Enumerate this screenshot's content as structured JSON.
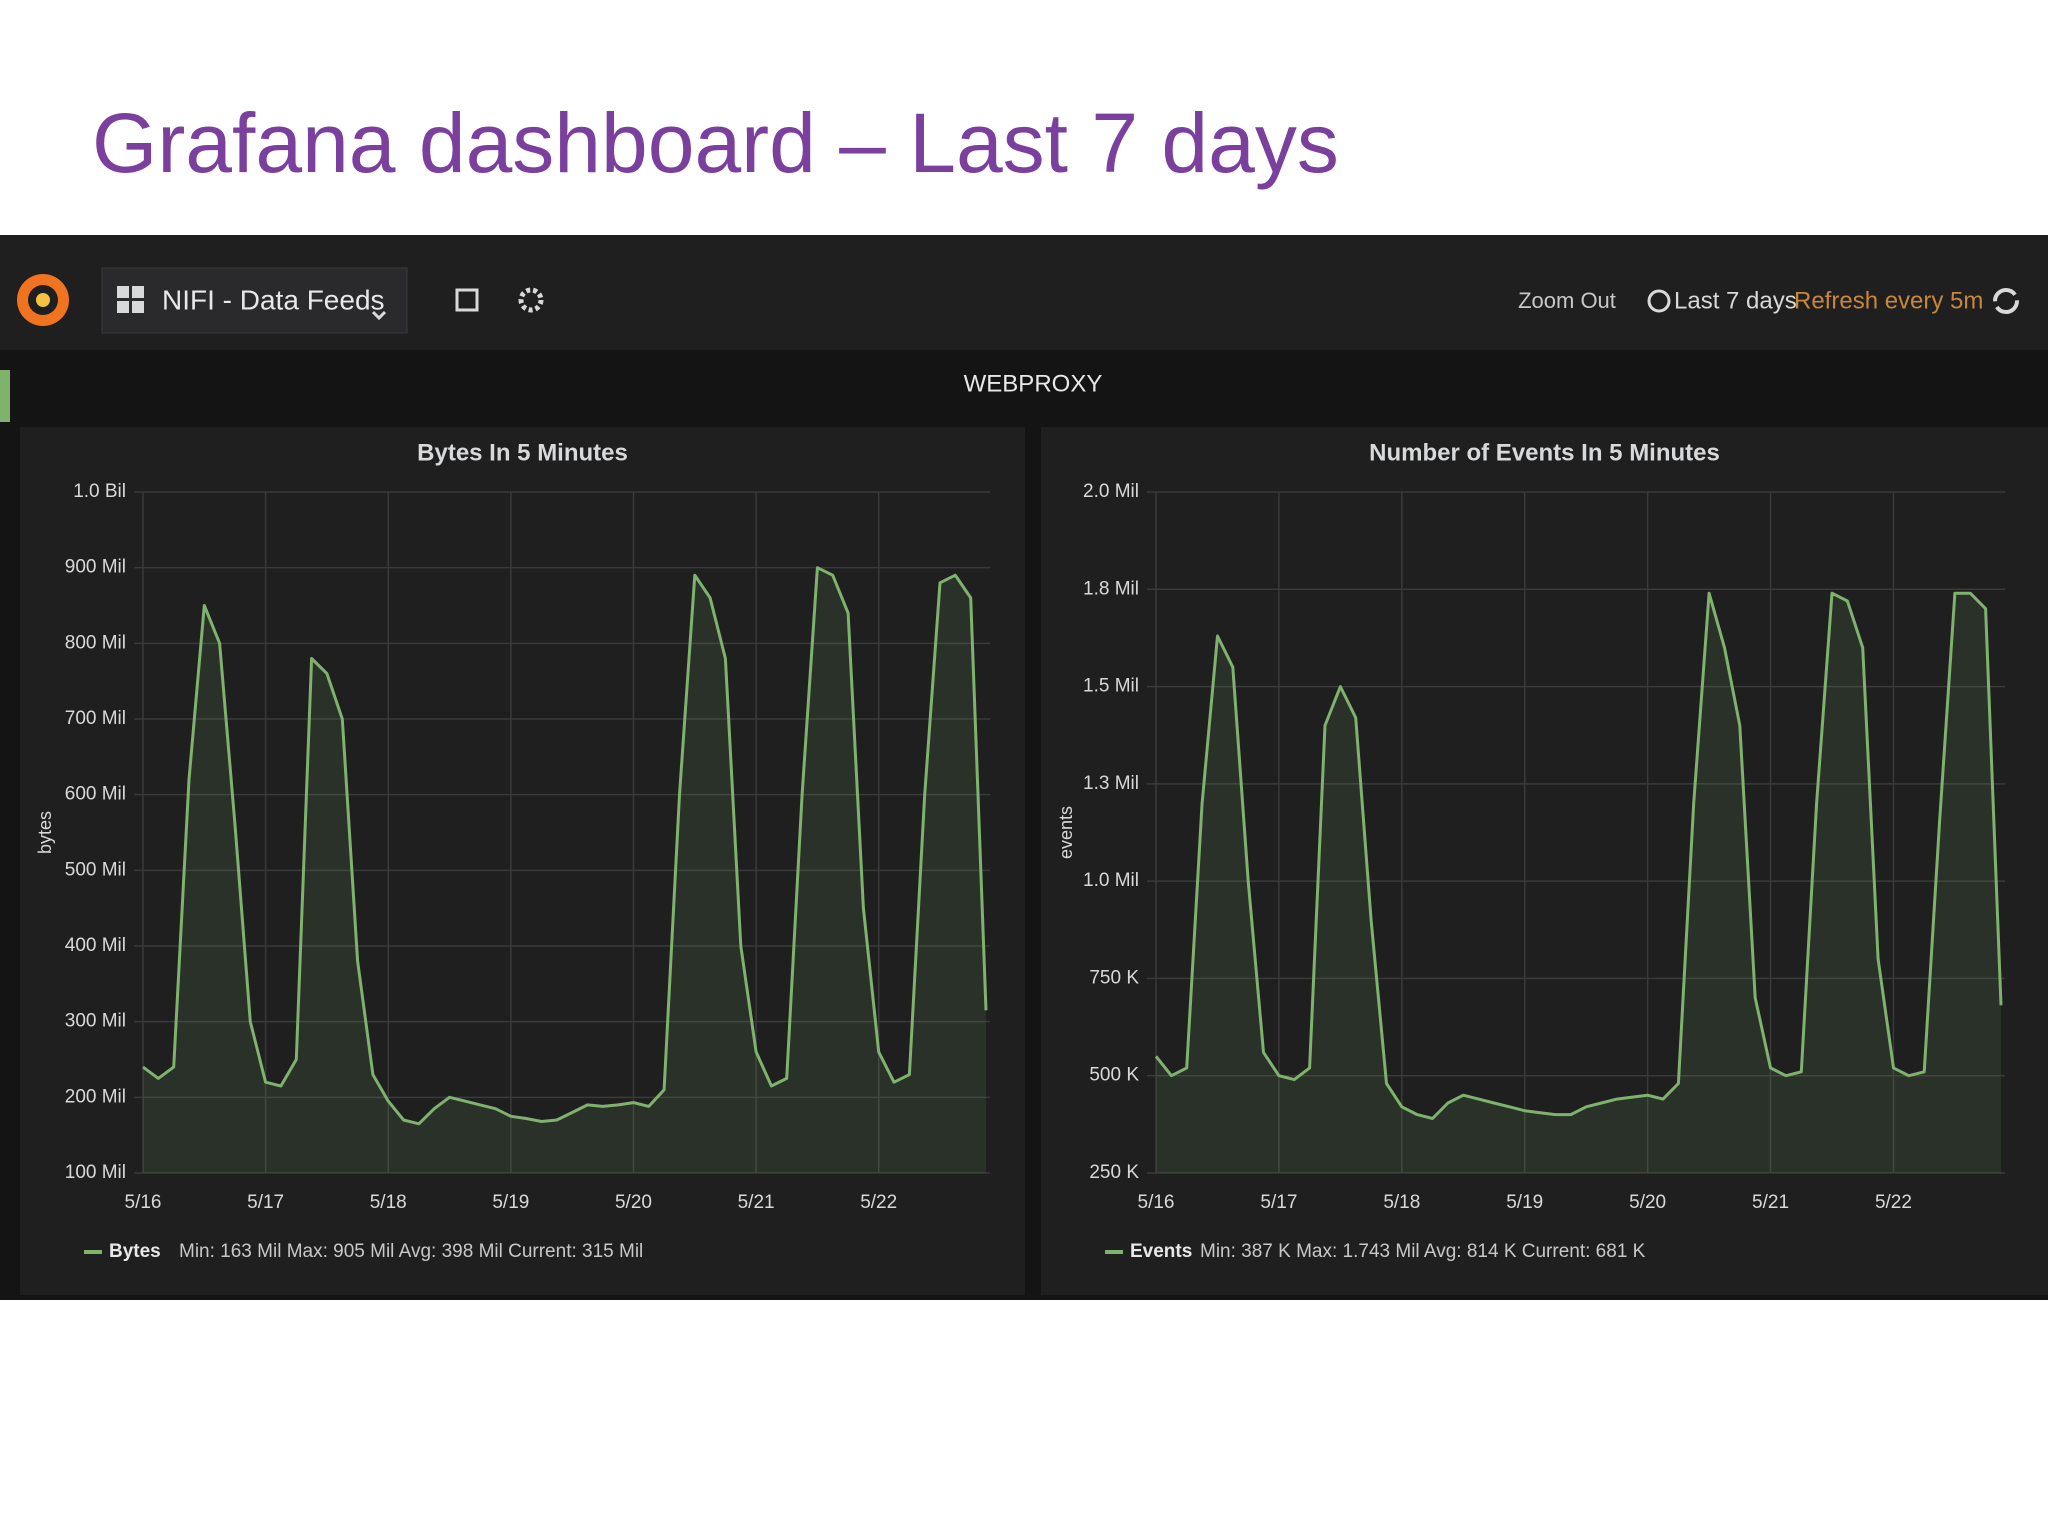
{
  "slide": {
    "title": "Grafana dashboard – Last 7 days"
  },
  "toolbar": {
    "dashboard": "NIFI - Data Feeds",
    "zoom": "Zoom Out",
    "range": "Last 7 days",
    "refresh": "Refresh every 5m"
  },
  "row_title": "WEBPROXY",
  "chart_data": [
    {
      "type": "line",
      "title": "Bytes In 5 Minutes",
      "ylabel": "bytes",
      "grid": true,
      "categories": [
        "5/16",
        null,
        null,
        null,
        null,
        null,
        null,
        null,
        "5/17",
        null,
        null,
        null,
        null,
        null,
        null,
        null,
        "5/18",
        null,
        null,
        null,
        null,
        null,
        null,
        null,
        "5/19",
        null,
        null,
        null,
        null,
        null,
        null,
        null,
        "5/20",
        null,
        null,
        null,
        null,
        null,
        null,
        null,
        "5/21",
        null,
        null,
        null,
        null,
        null,
        null,
        null,
        "5/22",
        null,
        null,
        null,
        null,
        null,
        null,
        null
      ],
      "series": [
        {
          "name": "Bytes",
          "color": "#7eb26d",
          "values": [
            240000000,
            225000000,
            240000000,
            620000000,
            850000000,
            800000000,
            560000000,
            300000000,
            220000000,
            215000000,
            250000000,
            780000000,
            760000000,
            700000000,
            380000000,
            230000000,
            195000000,
            170000000,
            165000000,
            185000000,
            200000000,
            195000000,
            190000000,
            185000000,
            175000000,
            172000000,
            168000000,
            170000000,
            180000000,
            190000000,
            188000000,
            190000000,
            193000000,
            188000000,
            210000000,
            600000000,
            890000000,
            860000000,
            780000000,
            400000000,
            260000000,
            215000000,
            225000000,
            600000000,
            900000000,
            890000000,
            840000000,
            450000000,
            260000000,
            220000000,
            230000000,
            600000000,
            880000000,
            890000000,
            860000000,
            315000000
          ]
        }
      ],
      "legend_stats": "Min: 163 Mil  Max: 905 Mil  Avg: 398 Mil  Current: 315 Mil",
      "ylim": [
        100000000,
        1000000000
      ],
      "yticks": [
        {
          "value": 100000000,
          "label": "100 Mil"
        },
        {
          "value": 200000000,
          "label": "200 Mil"
        },
        {
          "value": 300000000,
          "label": "300 Mil"
        },
        {
          "value": 400000000,
          "label": "400 Mil"
        },
        {
          "value": 500000000,
          "label": "500 Mil"
        },
        {
          "value": 600000000,
          "label": "600 Mil"
        },
        {
          "value": 700000000,
          "label": "700 Mil"
        },
        {
          "value": 800000000,
          "label": "800 Mil"
        },
        {
          "value": 900000000,
          "label": "900 Mil"
        },
        {
          "value": 1000000000,
          "label": "1.0 Bil"
        }
      ]
    },
    {
      "type": "line",
      "title": "Number of Events In 5 Minutes",
      "ylabel": "events",
      "grid": true,
      "categories": [
        "5/16",
        null,
        null,
        null,
        null,
        null,
        null,
        null,
        "5/17",
        null,
        null,
        null,
        null,
        null,
        null,
        null,
        "5/18",
        null,
        null,
        null,
        null,
        null,
        null,
        null,
        "5/19",
        null,
        null,
        null,
        null,
        null,
        null,
        null,
        "5/20",
        null,
        null,
        null,
        null,
        null,
        null,
        null,
        "5/21",
        null,
        null,
        null,
        null,
        null,
        null,
        null,
        "5/22",
        null,
        null,
        null,
        null,
        null,
        null,
        null
      ],
      "series": [
        {
          "name": "Events",
          "color": "#7eb26d",
          "values": [
            550000,
            500000,
            520000,
            1200000,
            1630000,
            1550000,
            1000000,
            560000,
            500000,
            490000,
            520000,
            1400000,
            1500000,
            1420000,
            900000,
            480000,
            420000,
            400000,
            390000,
            430000,
            450000,
            440000,
            430000,
            420000,
            410000,
            405000,
            400000,
            400000,
            420000,
            430000,
            440000,
            445000,
            450000,
            440000,
            480000,
            1200000,
            1740000,
            1600000,
            1400000,
            700000,
            520000,
            500000,
            510000,
            1200000,
            1740000,
            1720000,
            1600000,
            800000,
            520000,
            500000,
            510000,
            1150000,
            1740000,
            1740000,
            1700000,
            681000
          ]
        }
      ],
      "legend_stats": "Min: 387 K  Max: 1.743 Mil  Avg: 814 K  Current: 681 K",
      "ylim": [
        250000,
        2000000
      ],
      "yticks": [
        {
          "value": 250000,
          "label": "250 K"
        },
        {
          "value": 500000,
          "label": "500 K"
        },
        {
          "value": 750000,
          "label": "750 K"
        },
        {
          "value": 1000000,
          "label": "1.0 Mil"
        },
        {
          "value": 1250000,
          "label": "1.3 Mil"
        },
        {
          "value": 1500000,
          "label": "1.5 Mil"
        },
        {
          "value": 1750000,
          "label": "1.8 Mil"
        },
        {
          "value": 2000000,
          "label": "2.0 Mil"
        }
      ]
    }
  ]
}
